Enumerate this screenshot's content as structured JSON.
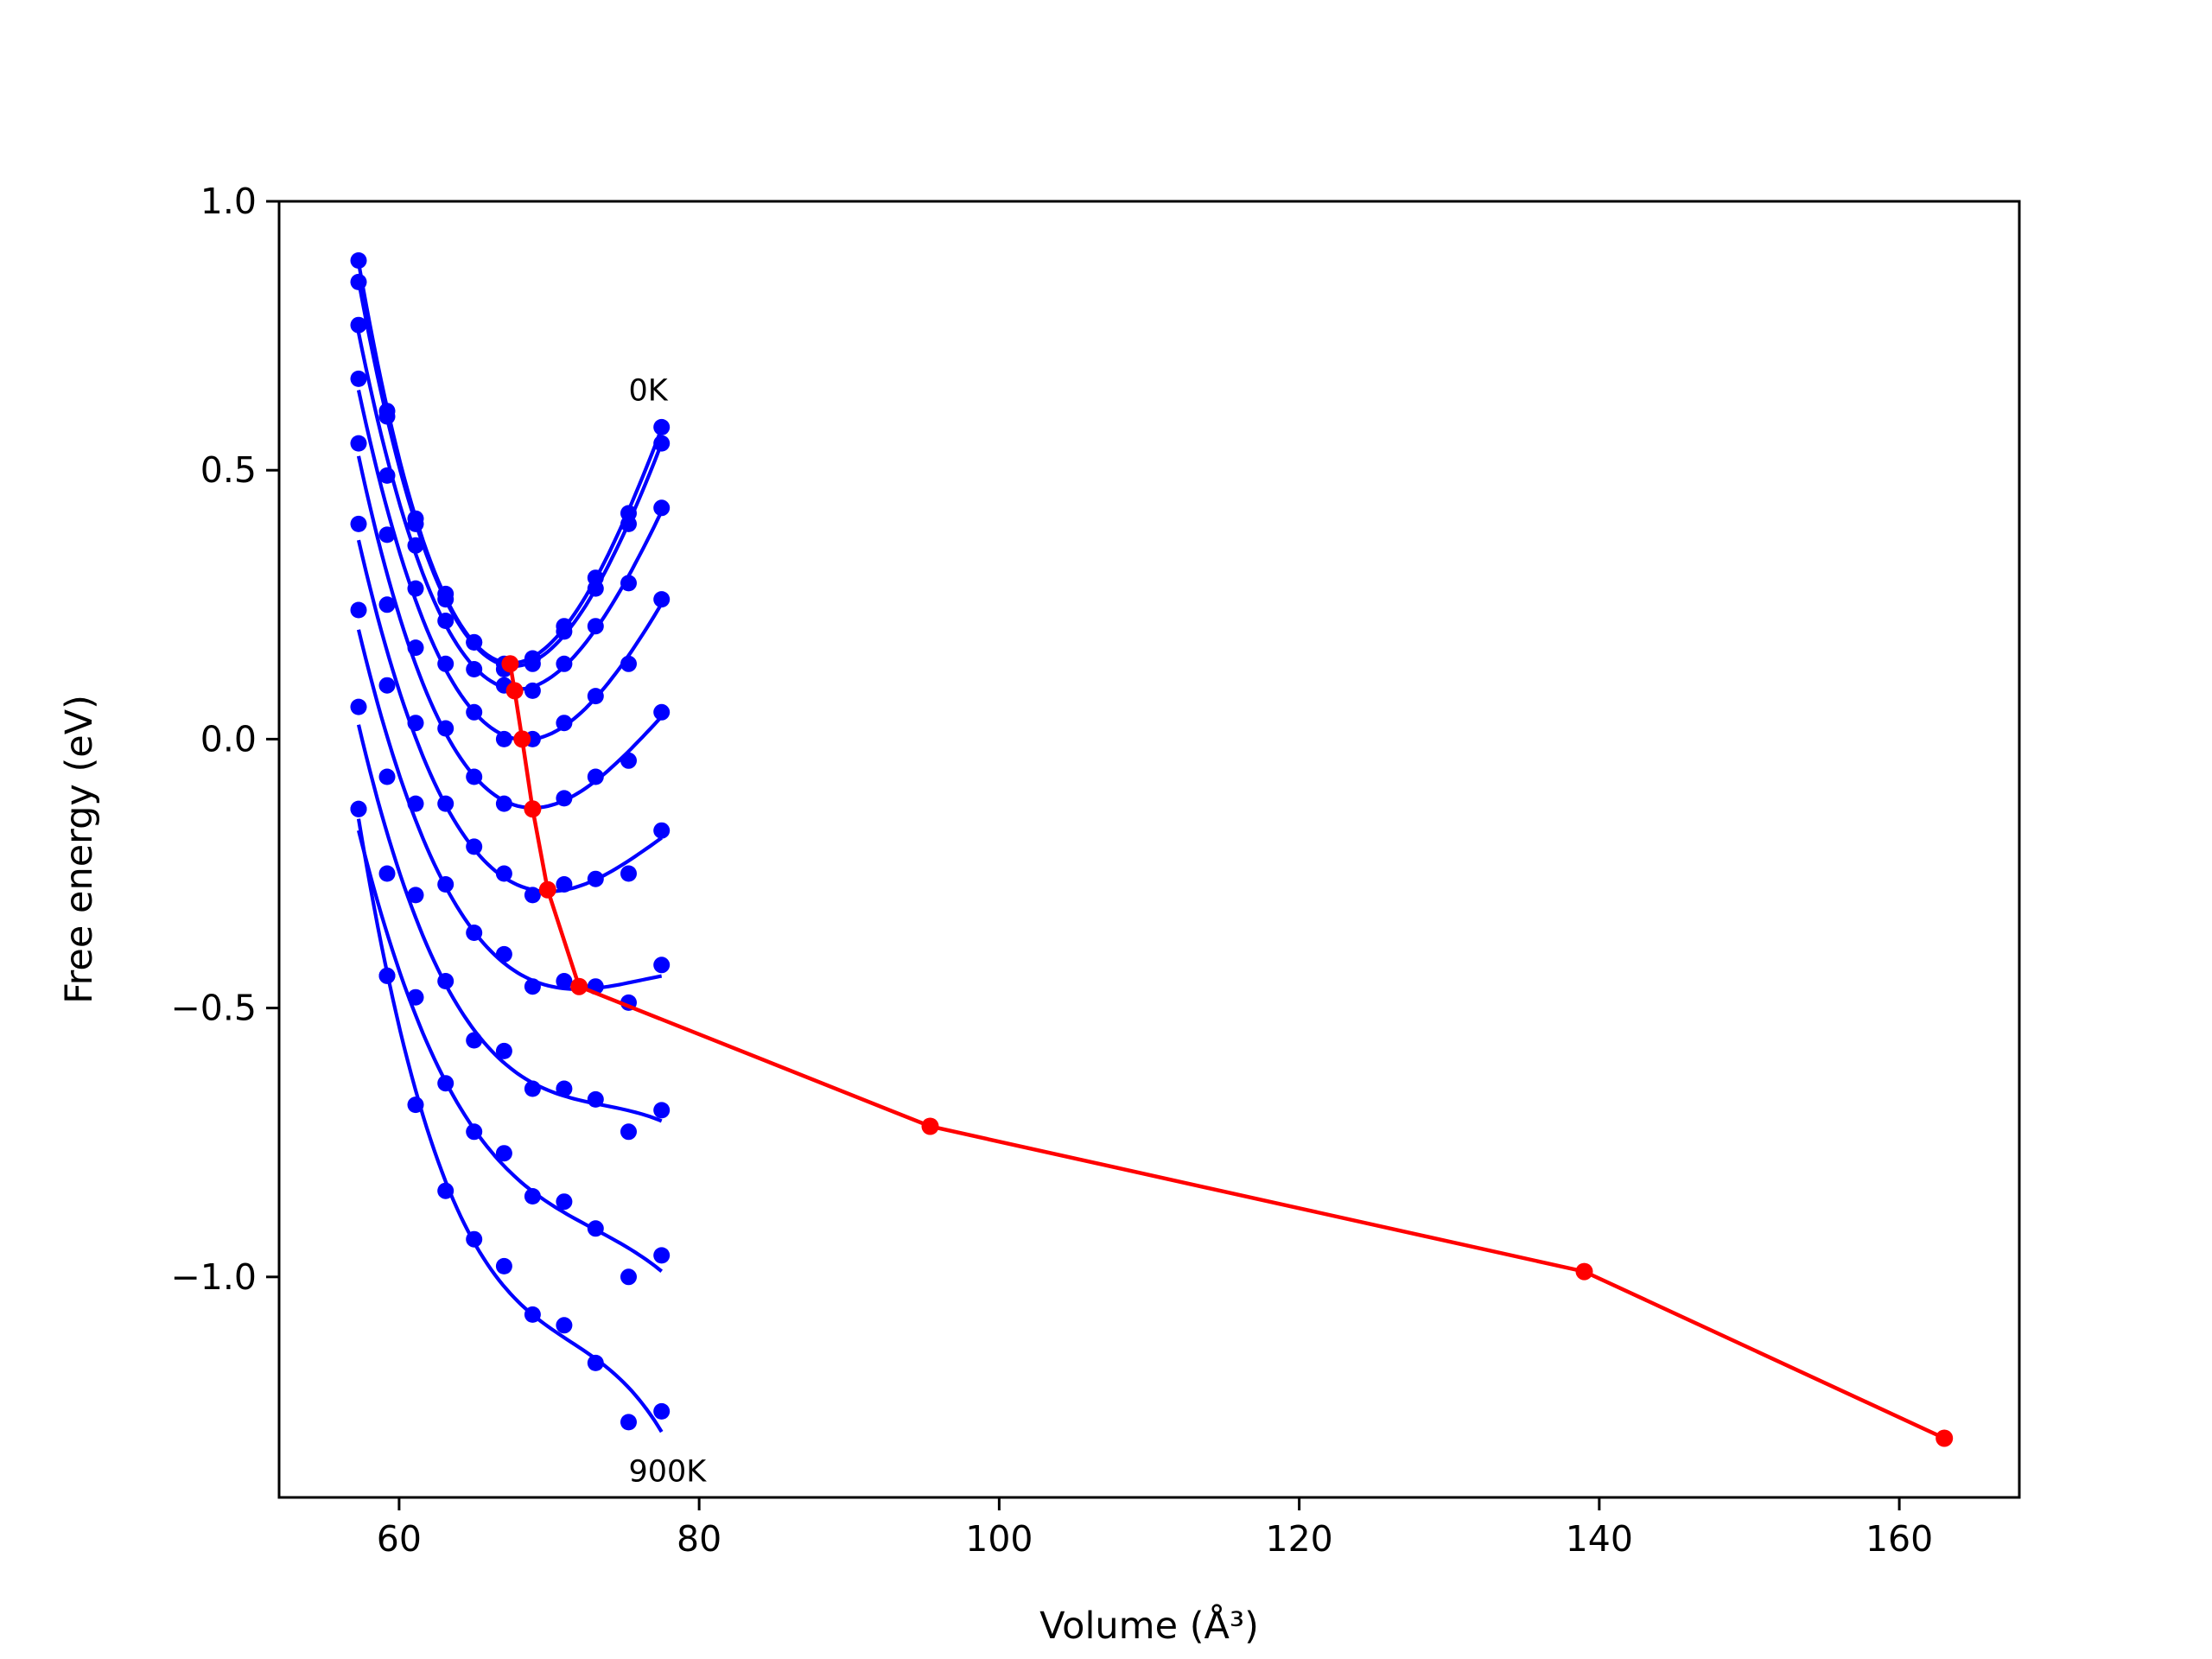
{
  "chart_data": {
    "type": "line",
    "title": "",
    "xlabel": "Volume (Å³)",
    "ylabel": "Free energy (eV)",
    "xlim": [
      52,
      168
    ],
    "ylim": [
      -1.41,
      1.0
    ],
    "xticks": [
      60,
      80,
      100,
      120,
      140,
      160
    ],
    "xtick_labels": [
      "60",
      "80",
      "100",
      "120",
      "140",
      "160"
    ],
    "yticks": [
      1.0,
      0.5,
      0.0,
      -0.5,
      -1.0
    ],
    "ytick_labels": [
      "1.0",
      "0.5",
      "0.0",
      "−0.5",
      "−1.0"
    ],
    "grid": false,
    "annotations": [
      {
        "text": "0K",
        "x": 75.3,
        "y": 0.63
      },
      {
        "text": "900K",
        "x": 75.3,
        "y": -1.38
      }
    ],
    "colors": {
      "data": "#0000ff",
      "minima": "#ff0000"
    },
    "sample_volumes": [
      57.3,
      59.2,
      61.1,
      63.1,
      65.0,
      67.0,
      68.9,
      71.0,
      73.1,
      75.3,
      77.5
    ],
    "series": [
      {
        "points": [
          0.89,
          0.61,
          0.41,
          0.27,
          0.18,
          0.14,
          0.15,
          0.21,
          0.3,
          0.42,
          0.58
        ]
      },
      {
        "points": [
          0.85,
          0.6,
          0.4,
          0.26,
          0.18,
          0.13,
          0.14,
          0.2,
          0.28,
          0.4,
          0.55
        ]
      },
      {
        "points": [
          0.77,
          0.49,
          0.36,
          0.22,
          0.13,
          0.1,
          0.09,
          0.14,
          0.21,
          0.29,
          0.43
        ]
      },
      {
        "points": [
          0.67,
          0.38,
          0.28,
          0.14,
          0.05,
          0.0,
          0.0,
          0.03,
          0.08,
          0.14,
          0.26
        ]
      },
      {
        "points": [
          0.55,
          0.25,
          0.17,
          0.02,
          -0.07,
          -0.12,
          -0.13,
          -0.11,
          -0.07,
          -0.04,
          0.05
        ]
      },
      {
        "points": [
          0.4,
          0.1,
          0.03,
          -0.12,
          -0.2,
          -0.25,
          -0.29,
          -0.27,
          -0.26,
          -0.25,
          -0.17
        ]
      },
      {
        "points": [
          0.24,
          -0.07,
          -0.12,
          -0.27,
          -0.36,
          -0.4,
          -0.46,
          -0.45,
          -0.46,
          -0.49,
          -0.42
        ]
      },
      {
        "points": [
          0.06,
          -0.25,
          -0.29,
          -0.45,
          -0.56,
          -0.58,
          -0.65,
          -0.65,
          -0.67,
          -0.73,
          -0.69
        ]
      },
      {
        "points": [
          -0.13,
          -0.44,
          -0.48,
          -0.64,
          -0.73,
          -0.77,
          -0.85,
          -0.86,
          -0.91,
          -1.0,
          -0.96
        ]
      },
      {
        "points": [
          -0.13,
          -0.44,
          -0.68,
          -0.84,
          -0.93,
          -0.98,
          -1.07,
          -1.09,
          -1.16,
          -1.27,
          -1.25
        ]
      }
    ],
    "minima": {
      "x": [
        67.4,
        67.7,
        68.2,
        68.9,
        69.9,
        72.0,
        95.4,
        139.0,
        163.0
      ],
      "y": [
        0.14,
        0.09,
        0.0,
        -0.13,
        -0.28,
        -0.46,
        -0.72,
        -0.99,
        -1.3
      ]
    }
  }
}
